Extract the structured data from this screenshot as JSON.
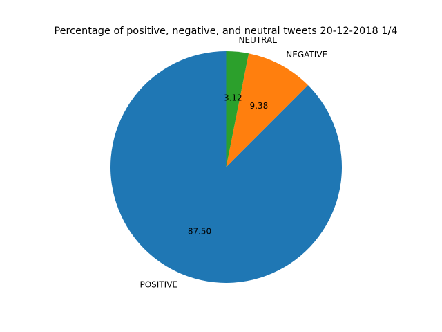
{
  "chart_data": {
    "type": "pie",
    "title": "Percentage of positive, negative, and neutral tweets 20-12-2018 1/4",
    "slices": [
      {
        "label": "POSITIVE",
        "value": 87.5,
        "pct_label": "87.50",
        "color": "#1f77b4"
      },
      {
        "label": "NEGATIVE",
        "value": 9.38,
        "pct_label": "9.38",
        "color": "#ff7f0e"
      },
      {
        "label": "NEUTRAL",
        "value": 3.12,
        "pct_label": "3.12",
        "color": "#2ca02c"
      }
    ],
    "start_angle_deg": 90,
    "direction": "counterclockwise"
  }
}
